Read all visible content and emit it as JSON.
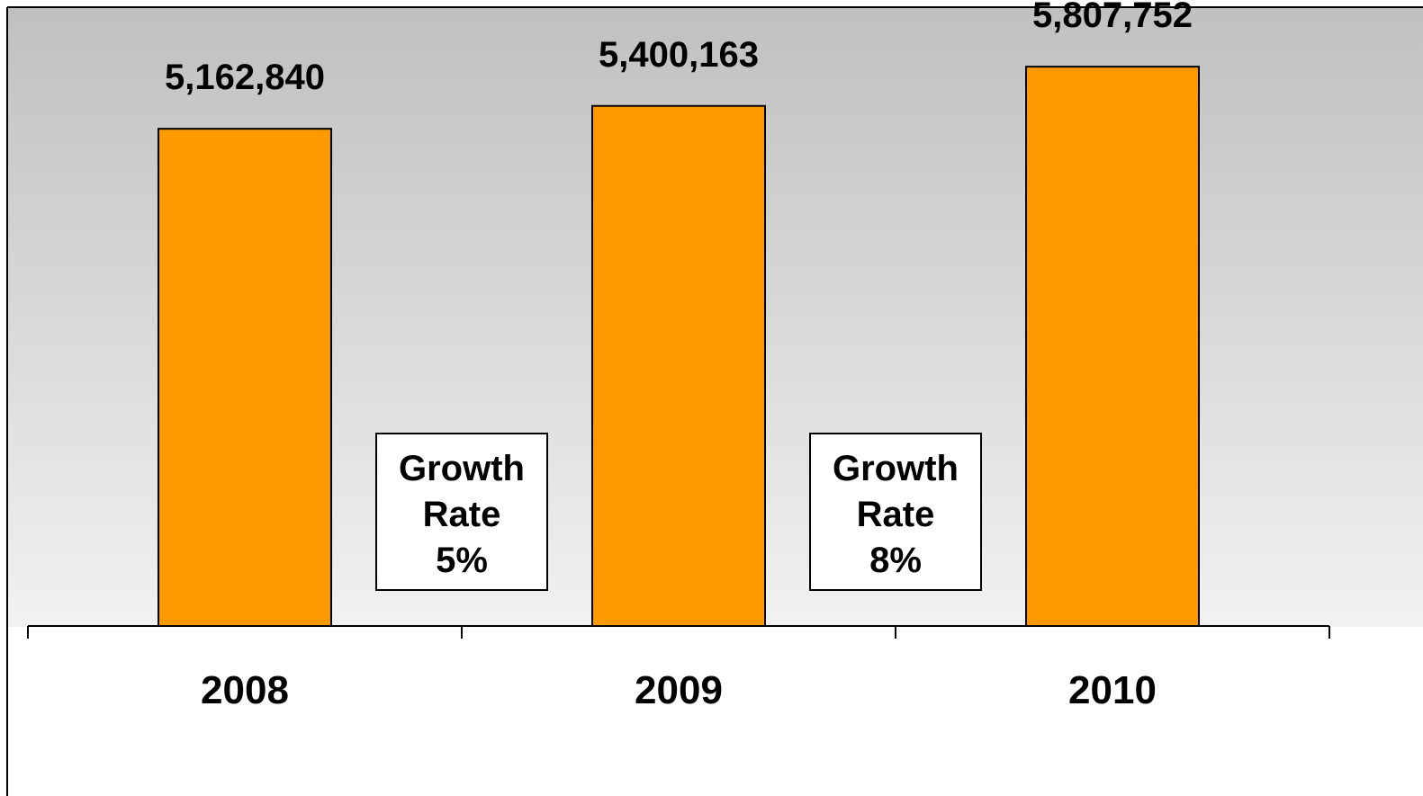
{
  "chart_data": {
    "type": "bar",
    "title": "",
    "xlabel": "",
    "ylabel": "",
    "categories": [
      "2008",
      "2009",
      "2010"
    ],
    "values": [
      5162840,
      5400163,
      5807752
    ],
    "value_labels": [
      "5,162,840",
      "5,400,163",
      "5,807,752"
    ],
    "ylim": [
      0,
      6500000
    ],
    "grid": false,
    "legend": "none",
    "annotations": [
      {
        "between": [
          "2008",
          "2009"
        ],
        "lines": [
          "Growth",
          "Rate",
          "5%"
        ]
      },
      {
        "between": [
          "2009",
          "2010"
        ],
        "lines": [
          "Growth",
          "Rate",
          "8%"
        ]
      }
    ]
  },
  "colors": {
    "bar_fill": "#FF9900",
    "bar_stroke": "#000000",
    "background_top": "#C0C0C0",
    "background_bottom": "#FFFFFF",
    "axis": "#000000",
    "annotation_fill": "#FFFFFF"
  }
}
